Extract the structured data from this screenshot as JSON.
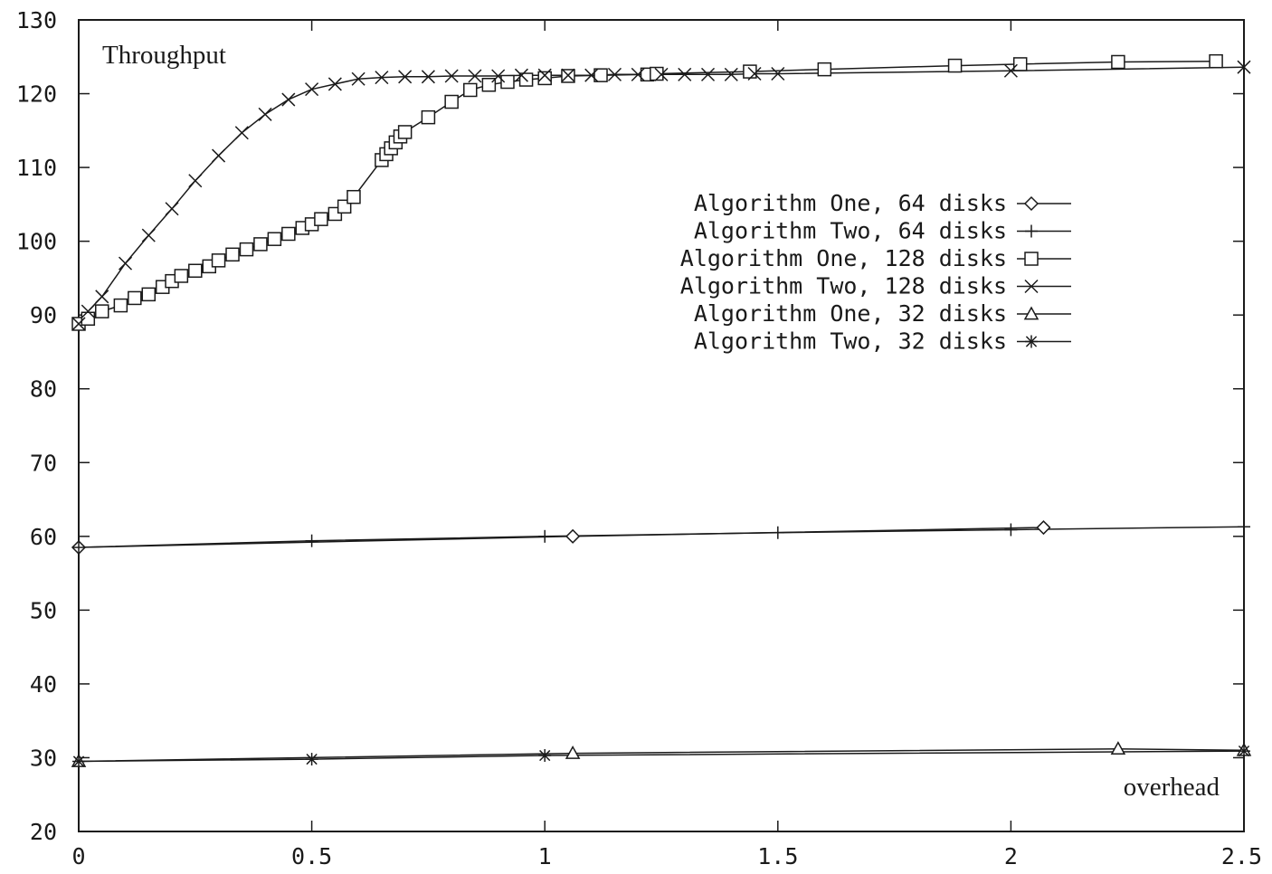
{
  "chart_data": {
    "type": "line",
    "title": "",
    "ylabel": "Throughput",
    "xlabel": "overhead",
    "xlim": [
      0,
      2.5
    ],
    "ylim": [
      20,
      130
    ],
    "x_ticks": [
      "0",
      "0.5",
      "1",
      "1.5",
      "2",
      "2.5"
    ],
    "y_ticks": [
      "20",
      "30",
      "40",
      "50",
      "60",
      "70",
      "80",
      "90",
      "100",
      "110",
      "120",
      "130"
    ],
    "grid": false,
    "legend_position": "top-right",
    "series": [
      {
        "name": "Algorithm One, 64 disks",
        "marker": "diamond",
        "x": [
          0,
          1.06,
          2.07
        ],
        "y": [
          58.5,
          60.0,
          61.2
        ]
      },
      {
        "name": "Algorithm Two, 64 disks",
        "marker": "plus",
        "x": [
          0,
          0.5,
          1.0,
          1.5,
          2.0,
          2.5
        ],
        "y": [
          58.5,
          59.4,
          60.0,
          60.5,
          60.9,
          61.3
        ]
      },
      {
        "name": "Algorithm One, 128 disks",
        "marker": "square",
        "x": [
          0,
          0.02,
          0.05,
          0.09,
          0.12,
          0.15,
          0.18,
          0.2,
          0.22,
          0.25,
          0.28,
          0.3,
          0.33,
          0.36,
          0.39,
          0.42,
          0.45,
          0.48,
          0.5,
          0.52,
          0.55,
          0.57,
          0.59,
          0.65,
          0.66,
          0.67,
          0.68,
          0.69,
          0.7,
          0.75,
          0.8,
          0.84,
          0.88,
          0.92,
          0.96,
          1.0,
          1.05,
          1.12,
          1.22,
          1.24,
          1.44,
          1.6,
          1.88,
          2.02,
          2.23,
          2.44
        ],
        "y": [
          88.8,
          89.5,
          90.5,
          91.3,
          92.3,
          92.8,
          93.8,
          94.6,
          95.3,
          96.0,
          96.6,
          97.4,
          98.2,
          98.9,
          99.6,
          100.3,
          101.0,
          101.8,
          102.3,
          103.0,
          103.7,
          104.7,
          106.0,
          111.0,
          111.8,
          112.6,
          113.4,
          114.2,
          114.8,
          116.8,
          118.9,
          120.5,
          121.2,
          121.6,
          121.9,
          122.1,
          122.4,
          122.5,
          122.6,
          122.7,
          123.0,
          123.3,
          123.8,
          124.0,
          124.3,
          124.4
        ]
      },
      {
        "name": "Algorithm Two, 128 disks",
        "marker": "x",
        "x": [
          0,
          0.02,
          0.05,
          0.1,
          0.15,
          0.2,
          0.25,
          0.3,
          0.35,
          0.4,
          0.45,
          0.5,
          0.55,
          0.6,
          0.65,
          0.7,
          0.75,
          0.8,
          0.85,
          0.9,
          0.95,
          1.0,
          1.05,
          1.1,
          1.15,
          1.2,
          1.25,
          1.3,
          1.35,
          1.4,
          1.45,
          1.5,
          2.0,
          2.5
        ],
        "y": [
          88.8,
          90.5,
          92.5,
          97.0,
          100.8,
          104.4,
          108.2,
          111.6,
          114.7,
          117.2,
          119.2,
          120.6,
          121.3,
          122.0,
          122.2,
          122.3,
          122.3,
          122.4,
          122.4,
          122.4,
          122.5,
          122.5,
          122.5,
          122.5,
          122.6,
          122.6,
          122.6,
          122.6,
          122.6,
          122.6,
          122.7,
          122.7,
          123.1,
          123.6
        ]
      },
      {
        "name": "Algorithm One, 32 disks",
        "marker": "triangle",
        "x": [
          0,
          1.06,
          2.23,
          2.5
        ],
        "y": [
          29.5,
          30.6,
          31.2,
          31.0
        ]
      },
      {
        "name": "Algorithm Two, 32 disks",
        "marker": "star",
        "x": [
          0,
          0.5,
          1.0,
          2.5
        ],
        "y": [
          29.5,
          29.8,
          30.3,
          30.9
        ]
      }
    ]
  }
}
